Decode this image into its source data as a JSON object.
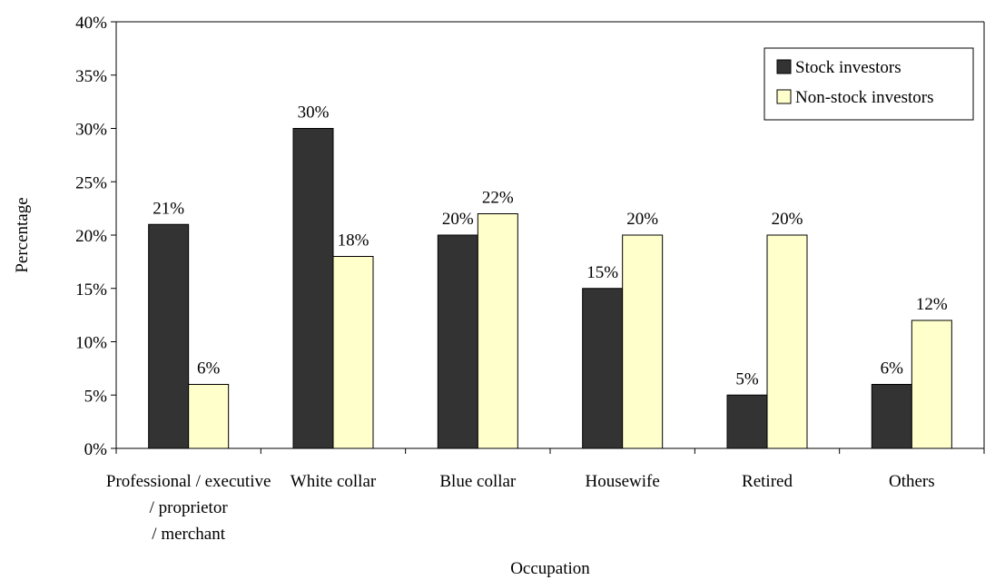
{
  "chart_data": {
    "type": "bar",
    "title": "",
    "xlabel": "Occupation",
    "ylabel": "Percentage",
    "ylim": [
      0,
      40
    ],
    "y_ticks": [
      0,
      5,
      10,
      15,
      20,
      25,
      30,
      35,
      40
    ],
    "y_tick_labels": [
      "0%",
      "5%",
      "10%",
      "15%",
      "20%",
      "25%",
      "30%",
      "35%",
      "40%"
    ],
    "grid": false,
    "legend_position": "top-right",
    "categories": [
      [
        "Professional / executive",
        "/ proprietor",
        "/ merchant"
      ],
      [
        "White collar"
      ],
      [
        "Blue collar"
      ],
      [
        "Housewife"
      ],
      [
        "Retired"
      ],
      [
        "Others"
      ]
    ],
    "series": [
      {
        "name": "Stock investors",
        "color": "#333333",
        "values": [
          21,
          30,
          20,
          15,
          5,
          6
        ],
        "labels": [
          "21%",
          "30%",
          "20%",
          "15%",
          "5%",
          "6%"
        ]
      },
      {
        "name": "Non-stock investors",
        "color": "#ffffcc",
        "values": [
          6,
          18,
          22,
          20,
          20,
          12
        ],
        "labels": [
          "6%",
          "18%",
          "22%",
          "20%",
          "20%",
          "12%"
        ]
      }
    ]
  }
}
